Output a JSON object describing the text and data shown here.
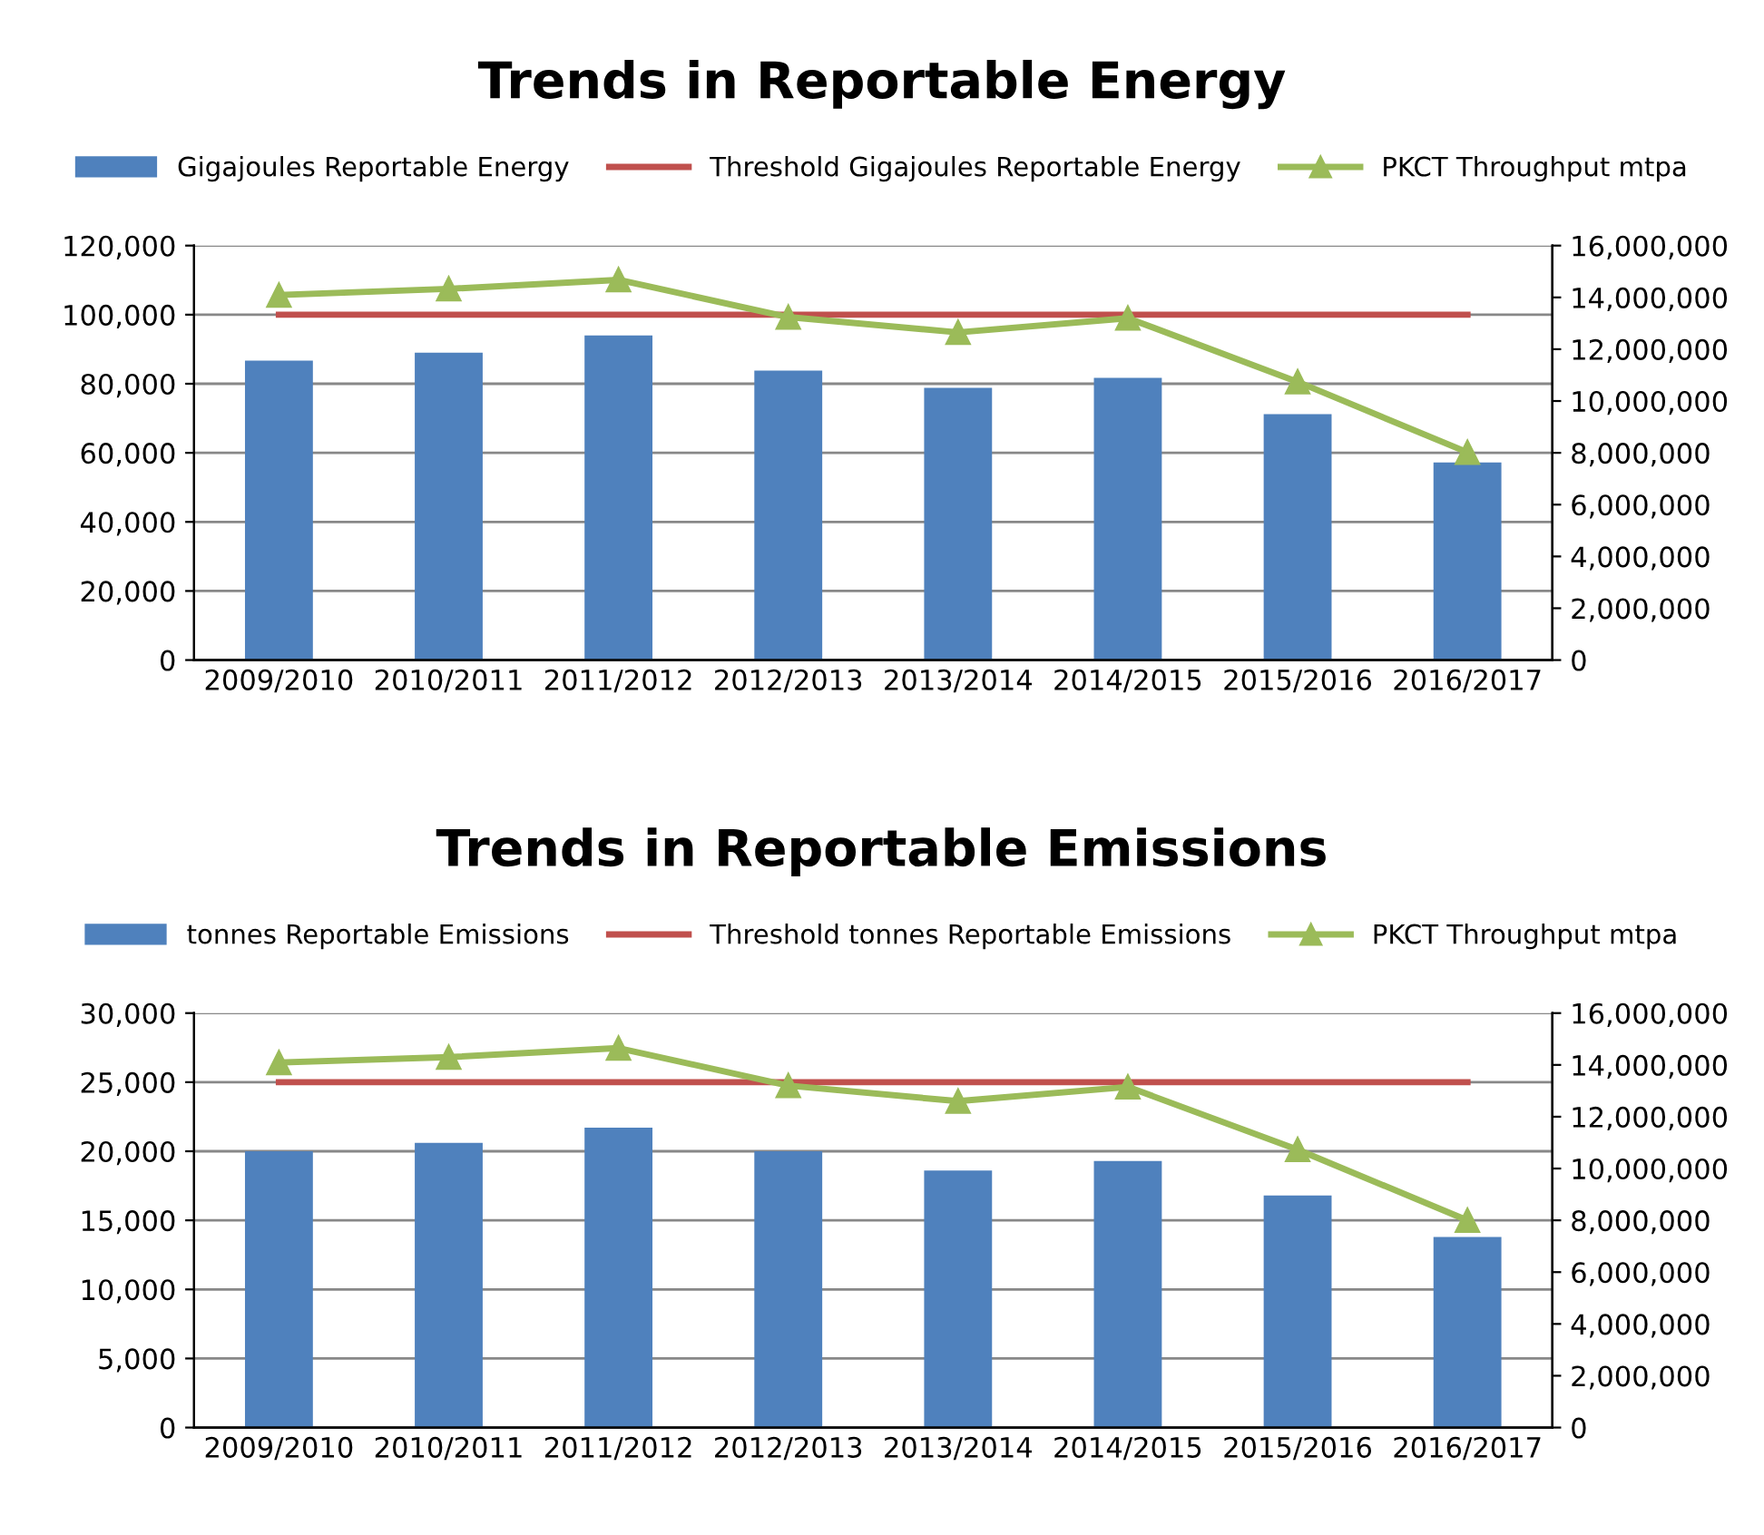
{
  "chart_data": [
    {
      "type": "bar",
      "title": "Trends in Reportable Energy",
      "categories": [
        "2009/2010",
        "2010/2011",
        "2011/2012",
        "2012/2013",
        "2013/2014",
        "2014/2015",
        "2015/2016",
        "2016/2017"
      ],
      "series": [
        {
          "name": "Gigajoules Reportable Energy",
          "color": "#4f81bd",
          "values": [
            86700,
            89000,
            94000,
            83800,
            78800,
            81700,
            71200,
            57200
          ]
        },
        {
          "name": "Threshold Gigajoules Reportable Energy",
          "type": "line",
          "color": "#c0504d",
          "marker": "none",
          "values": [
            100000,
            100000,
            100000,
            100000,
            100000,
            100000,
            100000,
            100000
          ]
        },
        {
          "name": "PKCT Throughput mtpa",
          "type": "line",
          "axis": "y2",
          "color": "#9bbb59",
          "marker": "triangle",
          "values": [
            14090000,
            14330000,
            14680000,
            13240000,
            12650000,
            13200000,
            10740000,
            8020000
          ]
        }
      ],
      "ylim": [
        0,
        120000
      ],
      "yticks": [
        {
          "value": 0,
          "label": "0"
        },
        {
          "value": 20000,
          "label": "20,000"
        },
        {
          "value": 40000,
          "label": "40,000"
        },
        {
          "value": 60000,
          "label": "60,000"
        },
        {
          "value": 80000,
          "label": "80,000"
        },
        {
          "value": 100000,
          "label": "100,000"
        },
        {
          "value": 120000,
          "label": "120,000"
        }
      ],
      "y2lim": [
        0,
        16000000
      ],
      "y2ticks": [
        {
          "value": 0,
          "label": "0"
        },
        {
          "value": 2000000,
          "label": "2,000,000"
        },
        {
          "value": 4000000,
          "label": "4,000,000"
        },
        {
          "value": 6000000,
          "label": "6,000,000"
        },
        {
          "value": 8000000,
          "label": "8,000,000"
        },
        {
          "value": 10000000,
          "label": "10,000,000"
        },
        {
          "value": 12000000,
          "label": "12,000,000"
        },
        {
          "value": 14000000,
          "label": "14,000,000"
        },
        {
          "value": 16000000,
          "label": "16,000,000"
        }
      ],
      "grid": "y",
      "legend": "top"
    },
    {
      "type": "bar",
      "title": "Trends in Reportable Emissions",
      "categories": [
        "2009/2010",
        "2010/2011",
        "2011/2012",
        "2012/2013",
        "2013/2014",
        "2014/2015",
        "2015/2016",
        "2016/2017"
      ],
      "series": [
        {
          "name": "tonnes Reportable Emissions",
          "color": "#4f81bd",
          "values": [
            20000,
            20600,
            21700,
            20000,
            18600,
            19300,
            16800,
            13800
          ]
        },
        {
          "name": "Threshold tonnes Reportable Emissions",
          "type": "line",
          "color": "#c0504d",
          "marker": "none",
          "values": [
            25000,
            25000,
            25000,
            25000,
            25000,
            25000,
            25000,
            25000
          ]
        },
        {
          "name": "PKCT Throughput mtpa",
          "type": "line",
          "axis": "y2",
          "color": "#9bbb59",
          "marker": "triangle",
          "values": [
            14090000,
            14300000,
            14650000,
            13200000,
            12600000,
            13150000,
            10730000,
            8000000
          ]
        }
      ],
      "ylim": [
        0,
        30000
      ],
      "yticks": [
        {
          "value": 0,
          "label": "0"
        },
        {
          "value": 5000,
          "label": "5,000"
        },
        {
          "value": 10000,
          "label": "10,000"
        },
        {
          "value": 15000,
          "label": "15,000"
        },
        {
          "value": 20000,
          "label": "20,000"
        },
        {
          "value": 25000,
          "label": "25,000"
        },
        {
          "value": 30000,
          "label": "30,000"
        }
      ],
      "y2lim": [
        0,
        16000000
      ],
      "y2ticks": [
        {
          "value": 0,
          "label": "0"
        },
        {
          "value": 2000000,
          "label": "2,000,000"
        },
        {
          "value": 4000000,
          "label": "4,000,000"
        },
        {
          "value": 6000000,
          "label": "6,000,000"
        },
        {
          "value": 8000000,
          "label": "8,000,000"
        },
        {
          "value": 10000000,
          "label": "10,000,000"
        },
        {
          "value": 12000000,
          "label": "12,000,000"
        },
        {
          "value": 14000000,
          "label": "14,000,000"
        },
        {
          "value": 16000000,
          "label": "16,000,000"
        }
      ],
      "grid": "y",
      "legend": "top"
    }
  ]
}
